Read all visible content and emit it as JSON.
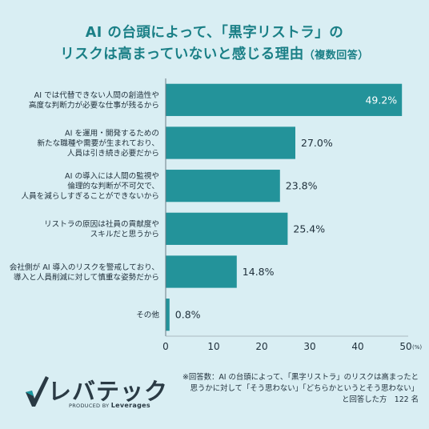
{
  "title": {
    "line1": "AI の台頭によって、「黒字リストラ」の",
    "line2_main": "リスクは高まっていないと感じる理由",
    "line2_sub": "（複数回答）"
  },
  "chart_data": {
    "type": "bar",
    "orientation": "horizontal",
    "categories": [
      [
        "AI では代替できない人間の創造性や",
        "高度な判断力が必要な仕事が残るから"
      ],
      [
        "AI を運用・開発するための",
        "新たな職種や需要が生まれており、",
        "人員は引き続き必要だから"
      ],
      [
        "AI の導入には人間の監視や",
        "倫理的な判断が不可欠で、",
        "人員を減らしすぎることができないから"
      ],
      [
        "リストラの原因は社員の貢献度や",
        "スキルだと思うから"
      ],
      [
        "会社側が AI 導入のリスクを警戒しており、",
        "導入と人員削減に対して慎重な姿勢だから"
      ],
      [
        "その他"
      ]
    ],
    "values": [
      49.2,
      27.0,
      23.8,
      25.4,
      14.8,
      0.8
    ],
    "value_labels": [
      "49.2%",
      "27.0%",
      "23.8%",
      "25.4%",
      "14.8%",
      "0.8%"
    ],
    "xlim": [
      0,
      50
    ],
    "xticks": [
      "0",
      "10",
      "20",
      "30",
      "40",
      "50"
    ],
    "x_unit": "(%)",
    "bar_color": "#23939a"
  },
  "note": {
    "line1": "※回答数：AI の台頭によって、「黒字リストラ」のリスクは高まったと",
    "line2": "思うかに対して「そう思わない」「どちらかというとそう思わない」",
    "line3": "と回答した方　122 名"
  },
  "logo": {
    "name": "レバテック",
    "produced_by": "PRODUCED BY",
    "brand": "Leverages"
  }
}
